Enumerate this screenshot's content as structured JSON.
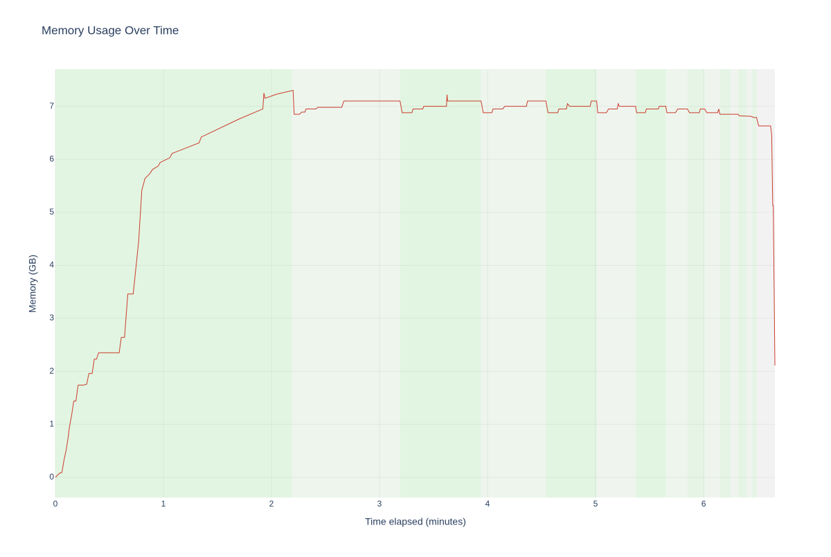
{
  "chart_data": {
    "type": "line",
    "title": "Memory Usage Over Time",
    "x_label": "Time elapsed (minutes)",
    "y_label": "Memory (GB)",
    "x": [
      0,
      0.04,
      0.06,
      0.08,
      0.1,
      0.12,
      0.13,
      0.15,
      0.17,
      0.19,
      0.21,
      0.26,
      0.29,
      0.31,
      0.34,
      0.36,
      0.38,
      0.4,
      0.59,
      0.61,
      0.64,
      0.67,
      0.72,
      0.77,
      0.8,
      0.83,
      0.87,
      0.9,
      0.95,
      0.97,
      1.06,
      1.08,
      1.33,
      1.35,
      1.7,
      1.92,
      1.93,
      1.94,
      2.05,
      2.2,
      2.21,
      2.26,
      2.28,
      2.31,
      2.32,
      2.41,
      2.43,
      2.65,
      2.67,
      3.19,
      3.21,
      3.3,
      3.31,
      3.4,
      3.41,
      3.62,
      3.625,
      3.63,
      3.94,
      3.96,
      4.04,
      4.05,
      4.14,
      4.16,
      4.36,
      4.37,
      4.54,
      4.56,
      4.65,
      4.66,
      4.73,
      4.74,
      4.76,
      4.95,
      4.96,
      5.01,
      5.02,
      5.1,
      5.12,
      5.2,
      5.21,
      5.22,
      5.37,
      5.38,
      5.46,
      5.47,
      5.58,
      5.59,
      5.65,
      5.66,
      5.74,
      5.76,
      5.85,
      5.87,
      5.96,
      5.97,
      6.01,
      6.03,
      6.13,
      6.14,
      6.15,
      6.32,
      6.33,
      6.44,
      6.46,
      6.49,
      6.51,
      6.62,
      6.63,
      6.64,
      6.645,
      6.66
    ],
    "series": [
      {
        "name": "Memory",
        "color": "#cc3a2b",
        "values": [
          0,
          0.08,
          0.09,
          0.33,
          0.52,
          0.78,
          0.95,
          1.17,
          1.44,
          1.44,
          1.74,
          1.74,
          1.76,
          1.96,
          1.96,
          2.23,
          2.23,
          2.35,
          2.35,
          2.64,
          2.64,
          3.46,
          3.46,
          4.44,
          5.42,
          5.64,
          5.72,
          5.81,
          5.87,
          5.94,
          6.03,
          6.11,
          6.31,
          6.42,
          6.76,
          6.95,
          7.25,
          7.15,
          7.23,
          7.3,
          6.85,
          6.85,
          6.89,
          6.89,
          6.95,
          6.95,
          6.98,
          6.98,
          7.1,
          7.1,
          6.88,
          6.88,
          6.95,
          6.95,
          7.0,
          7.0,
          7.22,
          7.1,
          7.1,
          6.88,
          6.88,
          6.95,
          6.95,
          7.0,
          7.0,
          7.1,
          7.1,
          6.88,
          6.88,
          6.95,
          6.95,
          7.05,
          7.0,
          7.0,
          7.1,
          7.1,
          6.88,
          6.88,
          6.95,
          6.95,
          7.05,
          7.0,
          7.0,
          6.88,
          6.88,
          6.95,
          6.95,
          7.0,
          7.0,
          6.88,
          6.88,
          6.95,
          6.95,
          6.88,
          6.88,
          6.95,
          6.95,
          6.88,
          6.88,
          6.95,
          6.85,
          6.85,
          6.82,
          6.81,
          6.79,
          6.79,
          6.63,
          6.63,
          6.46,
          5.13,
          5.13,
          2.11
        ]
      }
    ],
    "shaded_regions": [
      {
        "x0": 0,
        "x1": 2.19,
        "color": "#e2f5e2"
      },
      {
        "x0": 2.19,
        "x1": 3.19,
        "color": "#edf5ed"
      },
      {
        "x0": 3.19,
        "x1": 3.94,
        "color": "#e2f5e2"
      },
      {
        "x0": 3.94,
        "x1": 4.54,
        "color": "#edf5ed"
      },
      {
        "x0": 4.54,
        "x1": 5.01,
        "color": "#e2f5e2"
      },
      {
        "x0": 5.01,
        "x1": 5.37,
        "color": "#eff4ef"
      },
      {
        "x0": 5.37,
        "x1": 5.65,
        "color": "#e2f5e2"
      },
      {
        "x0": 5.65,
        "x1": 5.85,
        "color": "#edf5ed"
      },
      {
        "x0": 5.85,
        "x1": 6.01,
        "color": "#e5f4e5"
      },
      {
        "x0": 6.01,
        "x1": 6.15,
        "color": "#eff4ef"
      },
      {
        "x0": 6.15,
        "x1": 6.25,
        "color": "#e5f4e5"
      },
      {
        "x0": 6.25,
        "x1": 6.32,
        "color": "#eff4ef"
      },
      {
        "x0": 6.32,
        "x1": 6.4,
        "color": "#e5f4e5"
      },
      {
        "x0": 6.4,
        "x1": 6.45,
        "color": "#eff4ef"
      },
      {
        "x0": 6.45,
        "x1": 6.49,
        "color": "#e5f4e5"
      },
      {
        "x0": 6.49,
        "x1": 6.66,
        "color": "#f2f2f2"
      }
    ],
    "xlim": [
      0,
      6.66
    ],
    "ylim": [
      -0.38,
      7.7
    ],
    "xticks": [
      0,
      1,
      2,
      3,
      4,
      5,
      6
    ],
    "yticks": [
      0,
      1,
      2,
      3,
      4,
      5,
      6,
      7
    ],
    "grid": true
  }
}
